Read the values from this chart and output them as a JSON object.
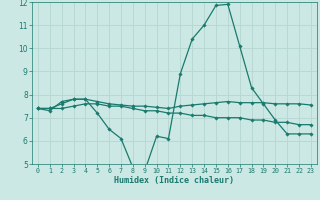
{
  "xlabel": "Humidex (Indice chaleur)",
  "bg_color": "#cce8e4",
  "grid_color": "#b8d8d4",
  "line_color": "#1a7a6e",
  "xlim": [
    -0.5,
    23.5
  ],
  "ylim": [
    5,
    12
  ],
  "yticks": [
    5,
    6,
    7,
    8,
    9,
    10,
    11,
    12
  ],
  "xticks": [
    0,
    1,
    2,
    3,
    4,
    5,
    6,
    7,
    8,
    9,
    10,
    11,
    12,
    13,
    14,
    15,
    16,
    17,
    18,
    19,
    20,
    21,
    22,
    23
  ],
  "line1_x": [
    0,
    1,
    2,
    3,
    4,
    5,
    6,
    7,
    8,
    9,
    10,
    11,
    12,
    13,
    14,
    15,
    16,
    17,
    18,
    19,
    20,
    21,
    22,
    23
  ],
  "line1_y": [
    7.4,
    7.3,
    7.7,
    7.8,
    7.8,
    7.2,
    6.5,
    6.1,
    4.85,
    4.7,
    6.2,
    6.1,
    8.9,
    10.4,
    11.0,
    11.85,
    11.9,
    10.1,
    8.3,
    7.6,
    6.9,
    6.3,
    6.3,
    6.3
  ],
  "line2_x": [
    0,
    1,
    2,
    3,
    4,
    5,
    6,
    7,
    8,
    9,
    10,
    11,
    12,
    13,
    14,
    15,
    16,
    17,
    18,
    19,
    20,
    21,
    22,
    23
  ],
  "line2_y": [
    7.4,
    7.4,
    7.4,
    7.5,
    7.6,
    7.6,
    7.5,
    7.5,
    7.4,
    7.3,
    7.3,
    7.2,
    7.2,
    7.1,
    7.1,
    7.0,
    7.0,
    7.0,
    6.9,
    6.9,
    6.8,
    6.8,
    6.7,
    6.7
  ],
  "line3_x": [
    0,
    1,
    2,
    3,
    4,
    5,
    6,
    7,
    8,
    9,
    10,
    11,
    12,
    13,
    14,
    15,
    16,
    17,
    18,
    19,
    20,
    21,
    22,
    23
  ],
  "line3_y": [
    7.4,
    7.4,
    7.6,
    7.8,
    7.8,
    7.7,
    7.6,
    7.55,
    7.5,
    7.5,
    7.45,
    7.4,
    7.5,
    7.55,
    7.6,
    7.65,
    7.7,
    7.65,
    7.65,
    7.65,
    7.6,
    7.6,
    7.6,
    7.55
  ]
}
